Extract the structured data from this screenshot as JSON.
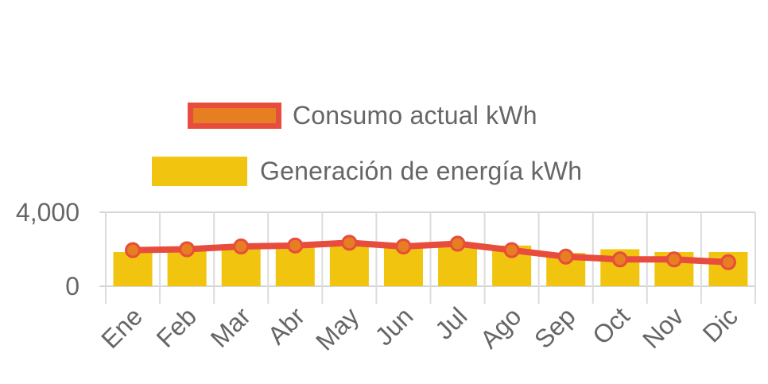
{
  "chart_data": {
    "type": "bar",
    "categories": [
      "Ene",
      "Feb",
      "Mar",
      "Abr",
      "May",
      "Jun",
      "Jul",
      "Ago",
      "Sep",
      "Oct",
      "Nov",
      "Dic"
    ],
    "series": [
      {
        "name": "Generación de energía kWh",
        "type": "bar",
        "color": "#f1c40f",
        "values": [
          1850,
          1900,
          2150,
          2150,
          2200,
          2150,
          2200,
          2200,
          1800,
          2000,
          1850,
          1850
        ]
      },
      {
        "name": "Consumo actual kWh",
        "type": "line",
        "color": "#e67e22",
        "stroke_color": "#e84c3d",
        "values": [
          1950,
          2000,
          2150,
          2200,
          2350,
          2150,
          2300,
          1950,
          1600,
          1450,
          1450,
          1300
        ]
      }
    ],
    "y_ticks": [
      0,
      4000
    ],
    "y_tick_labels": [
      "0",
      "4,000"
    ],
    "ylim": [
      0,
      4000
    ],
    "title": "",
    "xlabel": "",
    "ylabel": "",
    "grid": true,
    "legend_position": "top"
  },
  "legend": {
    "line_label": "Consumo actual kWh",
    "bar_label": "Generación de energía kWh"
  }
}
